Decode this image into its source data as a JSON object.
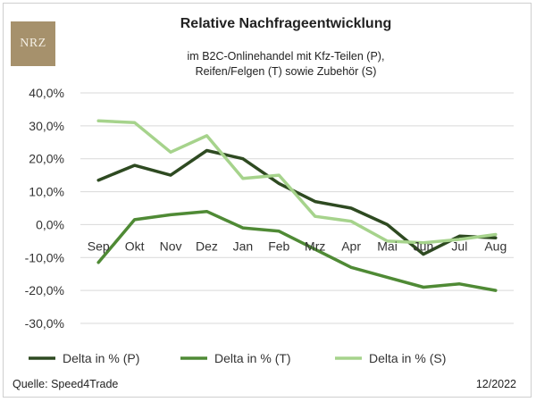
{
  "logo_text": "NRZ",
  "chart_data": {
    "type": "line",
    "title": "Relative Nachfrageentwicklung",
    "subtitle_lines": [
      "im B2C-Onlinehandel mit Kfz-Teilen (P),",
      "Reifen/Felgen (T) sowie Zubehör (S)"
    ],
    "categories": [
      "Sep",
      "Okt",
      "Nov",
      "Dez",
      "Jan",
      "Feb",
      "Mrz",
      "Apr",
      "Mai",
      "Jun",
      "Jul",
      "Aug"
    ],
    "ylim": [
      -30,
      40
    ],
    "yticks": [
      40,
      30,
      20,
      10,
      0,
      -10,
      -20,
      -30
    ],
    "ytick_labels": [
      "40,0%",
      "30,0%",
      "20,0%",
      "10,0%",
      "0,0%",
      "-10,0%",
      "-20,0%",
      "-30,0%"
    ],
    "grid": true,
    "legend_position": "bottom",
    "series": [
      {
        "name": "Delta in % (P)",
        "color": "#2e4a21",
        "values": [
          13.5,
          18,
          15,
          22.5,
          20,
          12.5,
          7,
          5,
          0,
          -9,
          -3.5,
          -4
        ]
      },
      {
        "name": "Delta in % (T)",
        "color": "#4f8a35",
        "values": [
          -11.5,
          1.5,
          3,
          4,
          -1,
          -2,
          -7.5,
          -13,
          -16,
          -19,
          -18,
          -20
        ]
      },
      {
        "name": "Delta in % (S)",
        "color": "#a6d38c",
        "values": [
          31.5,
          31,
          22,
          27,
          14,
          15,
          2.5,
          1,
          -5,
          -5.5,
          -4.5,
          -3
        ]
      }
    ]
  },
  "footer": {
    "source": "Quelle: Speed4Trade",
    "date": "12/2022"
  }
}
